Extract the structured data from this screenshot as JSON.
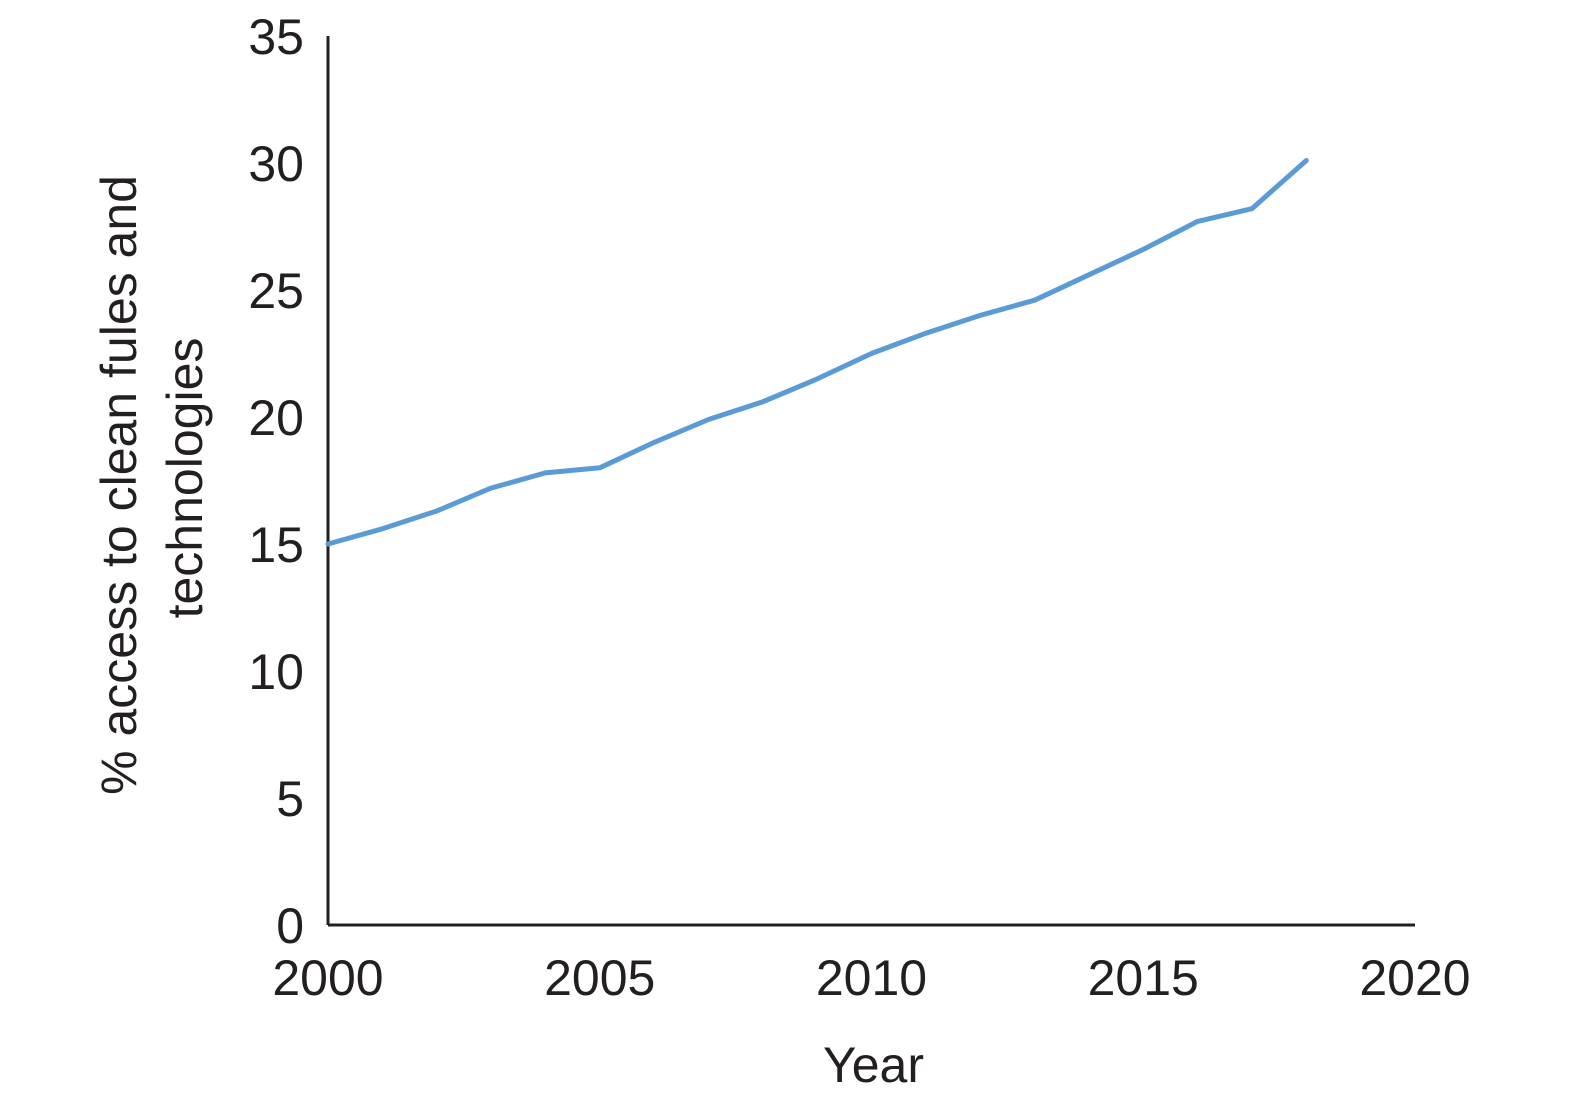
{
  "chart_data": {
    "type": "line",
    "xlabel": "Year",
    "ylabel": "% access to clean fules and technologies",
    "ylabel_lines": [
      "% access to clean fules and",
      "technologies"
    ],
    "xlim": [
      2000,
      2020
    ],
    "ylim": [
      0,
      35
    ],
    "x_ticks": [
      "2000",
      "2005",
      "2010",
      "2015",
      "2020"
    ],
    "y_ticks": [
      "0",
      "5",
      "10",
      "15",
      "20",
      "25",
      "30",
      "35"
    ],
    "grid": false,
    "legend": "none",
    "series": [
      {
        "color": "#5b9bd5",
        "x": [
          2000,
          2001,
          2002,
          2003,
          2004,
          2005,
          2006,
          2007,
          2008,
          2009,
          2010,
          2011,
          2012,
          2013,
          2014,
          2015,
          2016,
          2017,
          2018
        ],
        "y": [
          15.0,
          15.6,
          16.3,
          17.2,
          17.8,
          18.0,
          19.0,
          19.9,
          20.6,
          21.5,
          22.5,
          23.3,
          24.0,
          24.6,
          25.6,
          26.6,
          27.7,
          28.2,
          30.1
        ]
      }
    ]
  }
}
